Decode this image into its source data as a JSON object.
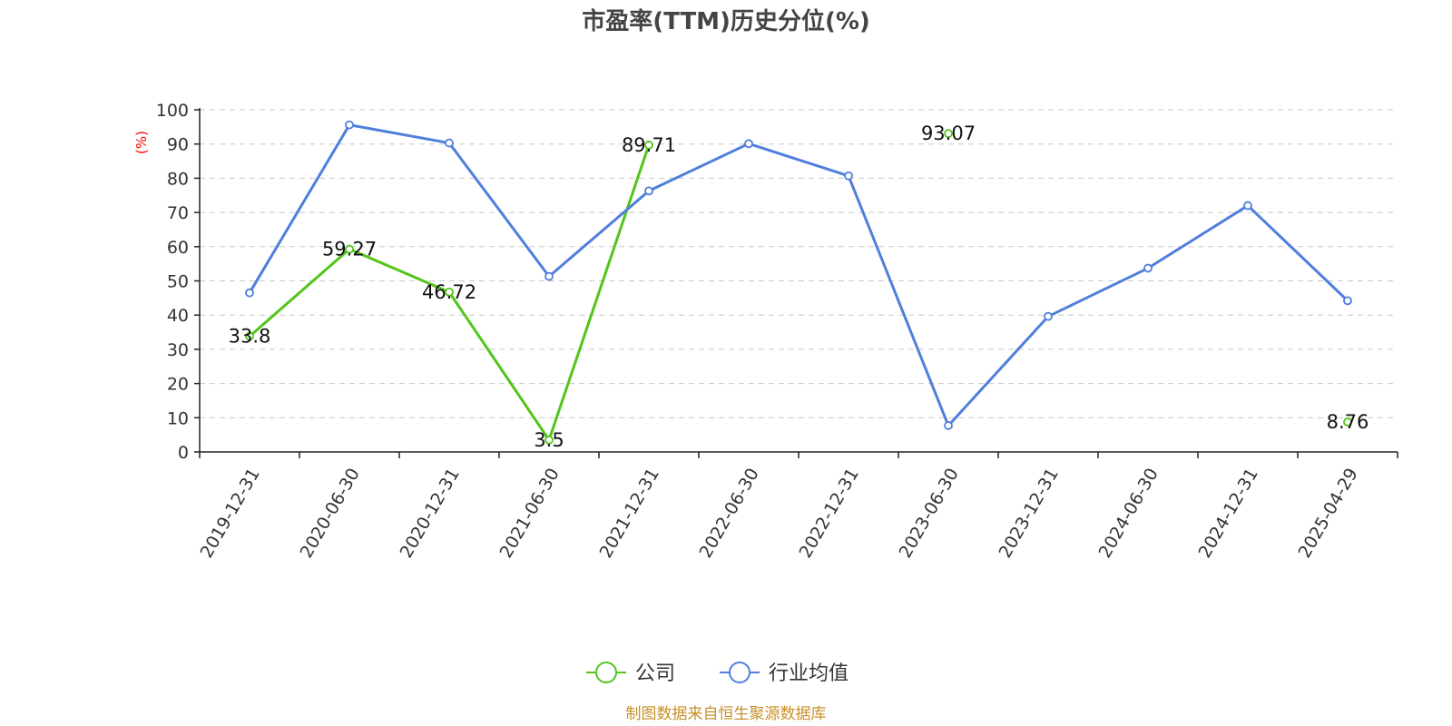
{
  "chart_data": {
    "type": "line",
    "title": "市盈率(TTM)历史分位(%)",
    "ylabel": "(%)",
    "xlabel": "",
    "ylim": [
      0,
      100
    ],
    "yticks": [
      0,
      10,
      20,
      30,
      40,
      50,
      60,
      70,
      80,
      90,
      100
    ],
    "grid": true,
    "legend_position": "bottom-center",
    "categories": [
      "2019-12-31",
      "2020-06-30",
      "2020-12-31",
      "2021-06-30",
      "2021-12-31",
      "2022-06-30",
      "2022-12-31",
      "2023-06-30",
      "2023-12-31",
      "2024-06-30",
      "2024-12-31",
      "2025-04-29"
    ],
    "series": [
      {
        "name": "公司",
        "color": "#52c41a",
        "labeled": true,
        "values": [
          33.8,
          59.27,
          46.72,
          3.5,
          89.71,
          null,
          null,
          93.07,
          null,
          null,
          null,
          8.76
        ]
      },
      {
        "name": "行业均值",
        "color": "#4f7fdc",
        "labeled": false,
        "values": [
          46.5,
          95.6,
          90.3,
          51.3,
          76.3,
          90.1,
          80.7,
          7.7,
          39.6,
          53.7,
          72.0,
          44.2
        ]
      }
    ]
  },
  "source": "制图数据来自恒生聚源数据库"
}
